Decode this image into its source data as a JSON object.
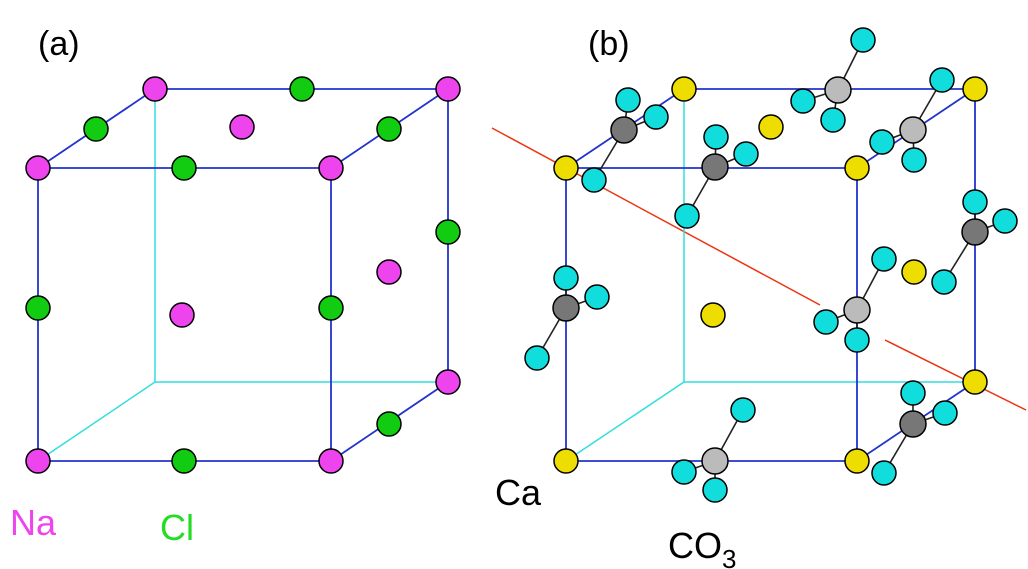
{
  "panel_a": {
    "label": "(a)",
    "legend": {
      "na_label": "Na",
      "cl_label": "Cl"
    }
  },
  "panel_b": {
    "label": "(b)",
    "legend": {
      "ca_label": "Ca",
      "co3_main": "CO",
      "co3_sub": "3"
    }
  },
  "colors": {
    "front_edge": "#2233cc",
    "back_edge": "#33dddd",
    "plane_line": "#ee3311",
    "na": "#ee44ee",
    "cl": "#11cc11",
    "ca": "#eedd00",
    "oxygen": "#11dddd",
    "carbon_dark": "#777777",
    "carbon_light": "#bbbbbb",
    "bond": "#222222",
    "na_label": "#ee44ee",
    "cl_label": "#22dd22"
  }
}
